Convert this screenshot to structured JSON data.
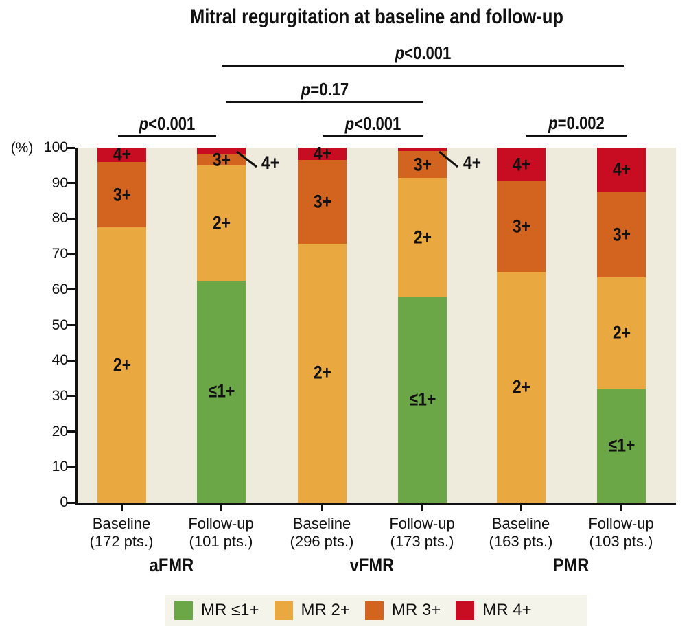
{
  "figure": {
    "title": "Mitral regurgitation at baseline and follow-up"
  },
  "colors": {
    "mr_le1_green": "#6ba647",
    "mr2_amber": "#eaa840",
    "mr3_orange": "#d2641f",
    "mr4_red": "#c80d22",
    "plot_background": "#efebdc",
    "legend_background": "#f5f4eb",
    "axis_and_text": "#111111"
  },
  "y_axis": {
    "unit_label": "(%)"
  },
  "chart_data": {
    "type": "bar",
    "stacked": true,
    "values_unit": "percent of patients",
    "title": "Mitral regurgitation at baseline and follow-up",
    "ylim": [
      0,
      100
    ],
    "yticks": [
      0,
      10,
      20,
      30,
      40,
      50,
      60,
      70,
      80,
      90,
      100
    ],
    "grid": false,
    "legend_position": "bottom",
    "seg_labels": {
      "mr_le1": "≤1+",
      "mr2": "2+",
      "mr3": "3+",
      "mr4": "4+"
    },
    "legend": [
      {
        "key": "mr_le1",
        "label": "MR ≤1+",
        "color": "#6ba647"
      },
      {
        "key": "mr2",
        "label": "MR 2+",
        "color": "#eaa840"
      },
      {
        "key": "mr3",
        "label": "MR 3+",
        "color": "#d2641f"
      },
      {
        "key": "mr4",
        "label": "MR 4+",
        "color": "#c80d22"
      }
    ],
    "groups": [
      "aFMR",
      "vFMR",
      "PMR"
    ],
    "bars": [
      {
        "group": "aFMR",
        "label_line1": "Baseline",
        "label_line2": "(172 pts.)",
        "n": 172,
        "segments": {
          "mr_le1": 0,
          "mr2": 77.5,
          "mr3": 18.5,
          "mr4": 4
        },
        "callout_mr4": false
      },
      {
        "group": "aFMR",
        "label_line1": "Follow-up",
        "label_line2": "(101 pts.)",
        "n": 101,
        "segments": {
          "mr_le1": 62.5,
          "mr2": 32.5,
          "mr3": 3,
          "mr4": 2
        },
        "callout_mr4": true
      },
      {
        "group": "vFMR",
        "label_line1": "Baseline",
        "label_line2": "(296 pts.)",
        "n": 296,
        "segments": {
          "mr_le1": 0,
          "mr2": 73,
          "mr3": 23.5,
          "mr4": 3.5
        },
        "callout_mr4": false
      },
      {
        "group": "vFMR",
        "label_line1": "Follow-up",
        "label_line2": "(173 pts.)",
        "n": 173,
        "segments": {
          "mr_le1": 58,
          "mr2": 33.5,
          "mr3": 7.5,
          "mr4": 1
        },
        "callout_mr4": true
      },
      {
        "group": "PMR",
        "label_line1": "Baseline",
        "label_line2": "(163 pts.)",
        "n": 163,
        "segments": {
          "mr_le1": 0,
          "mr2": 65,
          "mr3": 25.5,
          "mr4": 9.5
        },
        "callout_mr4": false
      },
      {
        "group": "PMR",
        "label_line1": "Follow-up",
        "label_line2": "(103 pts.)",
        "n": 103,
        "segments": {
          "mr_le1": 32,
          "mr2": 31.5,
          "mr3": 24,
          "mr4": 12.5
        },
        "callout_mr4": false
      }
    ],
    "p_values": [
      {
        "id": "afmr",
        "label": "p<0.001",
        "spans_bars": [
          0,
          1
        ]
      },
      {
        "id": "vfmr",
        "label": "p<0.001",
        "spans_bars": [
          2,
          3
        ]
      },
      {
        "id": "pmr",
        "label": "p=0.002",
        "spans_bars": [
          4,
          5
        ]
      },
      {
        "id": "afmr_vs_vfmr",
        "label": "p=0.17",
        "spans_bars": [
          1,
          3
        ]
      },
      {
        "id": "afmr_vs_pmr",
        "label": "p<0.001",
        "spans_bars": [
          1,
          5
        ]
      }
    ]
  }
}
